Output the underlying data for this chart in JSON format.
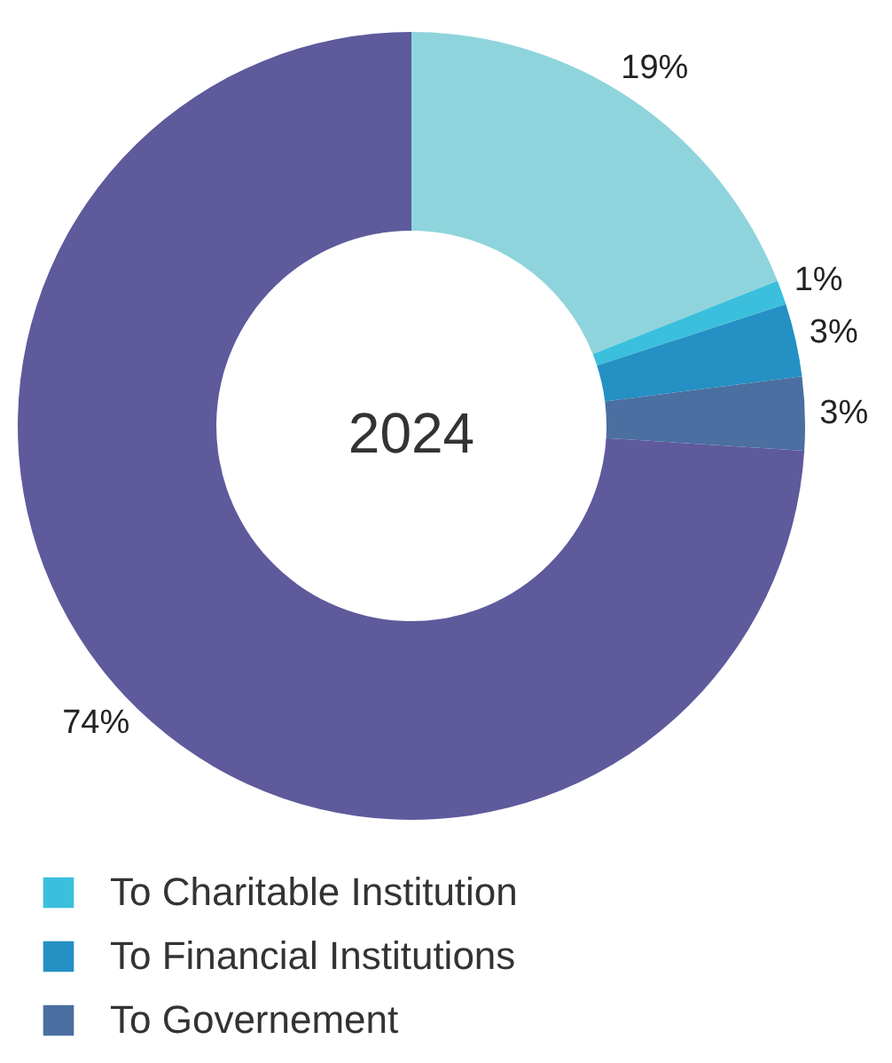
{
  "chart_data": {
    "type": "donut",
    "categories": [
      null,
      "To Charitable Institution",
      "To Financial Institutions",
      "To Governement",
      null
    ],
    "values": [
      19,
      1,
      3,
      3,
      74
    ],
    "colors": [
      "#8fd4dc",
      "#3ac0dc",
      "#2490c4",
      "#4a6fa0",
      "#5e5a9c"
    ],
    "value_labels": [
      "19%",
      "1%",
      "3%",
      "3%",
      "74%"
    ],
    "annotations": [
      "2024"
    ],
    "legend": "bottom"
  }
}
